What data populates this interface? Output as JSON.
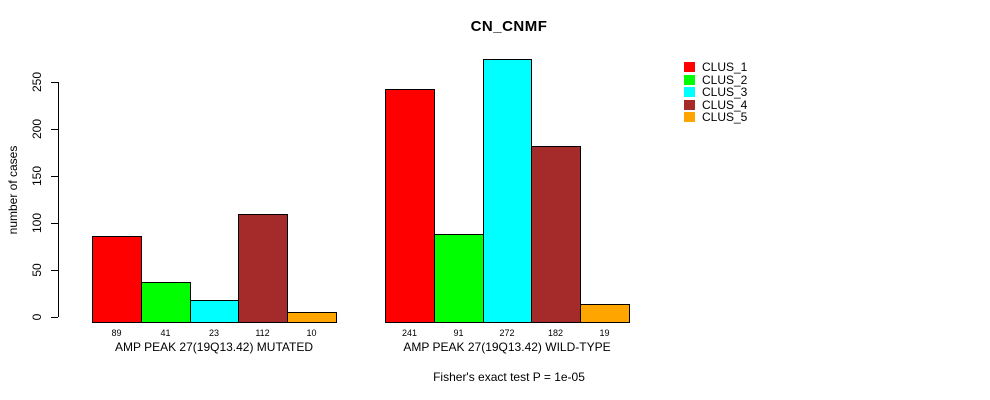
{
  "chart_data": {
    "type": "bar",
    "title": "CN_CNMF",
    "ylabel": "number of cases",
    "xlabel": "",
    "ylim": [
      0,
      250
    ],
    "yticks": [
      0,
      50,
      100,
      150,
      200,
      250
    ],
    "grid": false,
    "legend_position": "right",
    "show_bar_values": true,
    "categories": [
      "AMP PEAK 27(19Q13.42) MUTATED",
      "AMP PEAK 27(19Q13.42) WILD-TYPE"
    ],
    "series": [
      {
        "name": "CLUS_1",
        "color": "#FF0000",
        "values": [
          89,
          241
        ]
      },
      {
        "name": "CLUS_2",
        "color": "#00FF00",
        "values": [
          41,
          91
        ]
      },
      {
        "name": "CLUS_3",
        "color": "#00FFFF",
        "values": [
          23,
          272
        ]
      },
      {
        "name": "CLUS_4",
        "color": "#A52A2A",
        "values": [
          112,
          182
        ]
      },
      {
        "name": "CLUS_5",
        "color": "#FFA500",
        "values": [
          10,
          19
        ]
      }
    ],
    "annotation": "Fisher's exact test P = 1e-05"
  }
}
